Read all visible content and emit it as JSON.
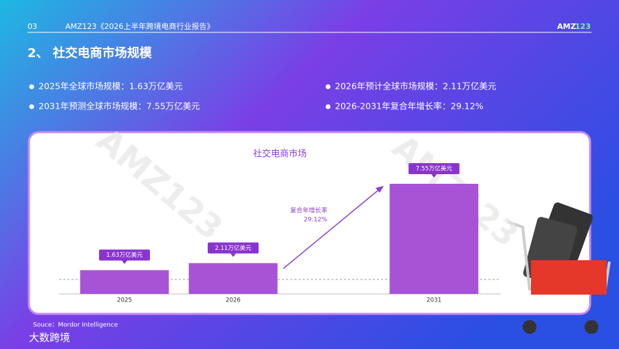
{
  "page_number": "03",
  "header_title": "AMZ123《2026上半年跨境电商行业报告》",
  "logo": {
    "main": "AMZ",
    "accent": "123"
  },
  "section_title": "2、 社交电商市场规模",
  "bullets": [
    "2025年全球市场规模：1.63万亿美元",
    "2026年预计全球市场规模：2.11万亿美元",
    "2031年预测全球市场规模：7.55万亿美元",
    "2026-2031年复合年增长率：29.12%"
  ],
  "watermark": "AMZ123",
  "chart_data": {
    "type": "bar",
    "title": "社交电商市场",
    "categories": [
      "2025",
      "2026",
      "2031"
    ],
    "values": [
      1.63,
      2.11,
      7.55
    ],
    "value_labels": [
      "1.63万亿美元",
      "2.11万亿美元",
      "7.55万亿美元"
    ],
    "color": "#a653d6",
    "annotation": {
      "label": "复合年增长率",
      "value": "29.12%"
    }
  },
  "source": "Souce：Mordor Intelligence",
  "footer_brand": "大数跨境"
}
